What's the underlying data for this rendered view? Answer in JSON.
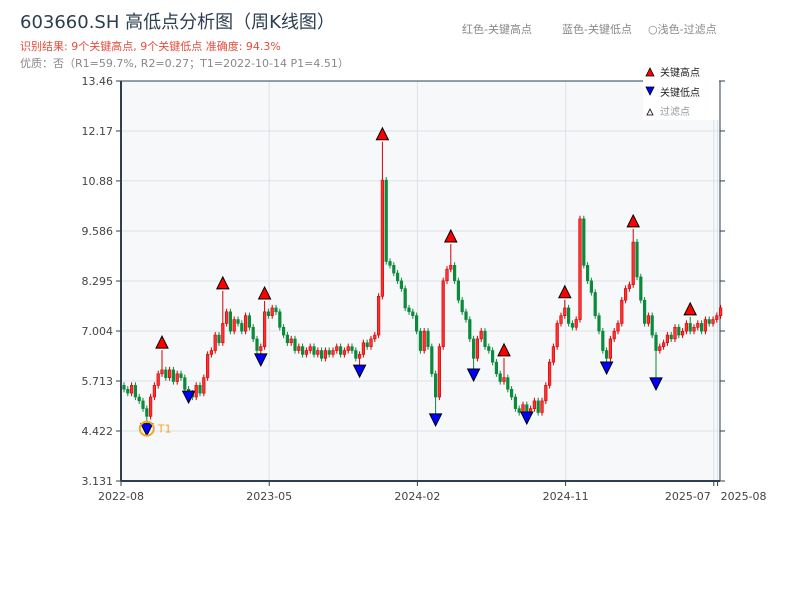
{
  "header": {
    "title": "603660.SH 高低点分析图（周K线图）",
    "result": "识别结果: 9个关键高点, 9个关键低点  准确度: 94.3%",
    "quality": "优质：否（R1=59.7%, R2=0.27；T1=2022-10-14 P1=4.51）",
    "color_legend": [
      "红色-关键高点",
      "蓝色-关键低点",
      "○浅色-过滤点"
    ]
  },
  "chart_data": {
    "type": "candlestick",
    "title": "603660.SH 高低点分析图（周K线图）",
    "up_color": "#d40000",
    "down_color": "#0a8a3a",
    "high_marker_color": "#ff0000",
    "low_marker_color": "#0000ff",
    "t1_color": "#f5a623",
    "ylim": [
      3.131,
      13.46
    ],
    "yticks": [
      "3.131",
      "4.422",
      "5.713",
      "7.004",
      "8.295",
      "9.586",
      "10.88",
      "12.17",
      "13.46"
    ],
    "xticks": [
      {
        "index": 0,
        "label": "2022-08"
      },
      {
        "index": 39,
        "label": "2023-05"
      },
      {
        "index": 78,
        "label": "2024-02"
      },
      {
        "index": 117,
        "label": "2024-11"
      },
      {
        "index": 156,
        "label": "2025-07"
      },
      {
        "index": 157,
        "label": "2025-08"
      }
    ],
    "grid": true,
    "legend": {
      "position": "top-right",
      "items": [
        "关键高点",
        "关键低点",
        "过滤点"
      ]
    },
    "start_price": 5.6,
    "close": [
      5.5,
      5.4,
      5.6,
      5.3,
      5.2,
      5.0,
      4.8,
      5.3,
      5.6,
      5.9,
      6.0,
      5.8,
      6.0,
      5.7,
      5.9,
      5.8,
      5.5,
      5.4,
      5.3,
      5.6,
      5.4,
      5.8,
      6.4,
      6.5,
      6.9,
      6.7,
      7.2,
      7.5,
      7.0,
      7.3,
      7.2,
      7.0,
      7.4,
      7.1,
      6.8,
      6.5,
      6.6,
      7.5,
      7.4,
      7.6,
      7.5,
      7.1,
      6.9,
      6.7,
      6.8,
      6.5,
      6.6,
      6.4,
      6.5,
      6.6,
      6.4,
      6.5,
      6.3,
      6.5,
      6.4,
      6.5,
      6.6,
      6.4,
      6.5,
      6.6,
      6.5,
      6.3,
      6.4,
      6.7,
      6.6,
      6.8,
      6.9,
      7.9,
      10.9,
      8.8,
      8.7,
      8.5,
      8.3,
      8.1,
      7.6,
      7.5,
      7.4,
      7.0,
      6.5,
      7.0,
      6.6,
      5.9,
      5.3,
      6.6,
      8.3,
      8.6,
      8.7,
      8.3,
      7.8,
      7.5,
      7.3,
      6.8,
      6.3,
      6.8,
      7.0,
      6.6,
      6.5,
      6.2,
      5.9,
      5.7,
      5.8,
      5.5,
      5.3,
      5.0,
      4.9,
      5.1,
      4.9,
      5.0,
      5.2,
      4.9,
      5.2,
      5.6,
      6.2,
      6.6,
      7.2,
      7.4,
      7.6,
      7.2,
      7.1,
      7.3,
      9.9,
      8.7,
      8.3,
      8.0,
      7.4,
      7.0,
      6.5,
      6.3,
      6.8,
      7.0,
      7.2,
      7.8,
      8.1,
      8.2,
      9.3,
      8.4,
      7.8,
      7.2,
      7.4,
      6.9,
      6.5,
      6.6,
      6.7,
      6.9,
      6.8,
      7.1,
      6.9,
      7.0,
      7.2,
      7.0,
      7.1,
      7.2,
      7.0,
      7.3,
      7.2,
      7.3,
      7.4,
      7.6
    ],
    "key_highs": [
      {
        "index": 10,
        "price": 6.51
      },
      {
        "index": 26,
        "price": 8.04
      },
      {
        "index": 37,
        "price": 7.78
      },
      {
        "index": 68,
        "price": 11.89
      },
      {
        "index": 86,
        "price": 9.25
      },
      {
        "index": 100,
        "price": 6.31
      },
      {
        "index": 116,
        "price": 7.81
      },
      {
        "index": 134,
        "price": 9.64
      },
      {
        "index": 149,
        "price": 7.37
      }
    ],
    "key_lows": [
      {
        "index": 6,
        "price": 4.51
      },
      {
        "index": 17,
        "price": 5.35
      },
      {
        "index": 36,
        "price": 6.31
      },
      {
        "index": 62,
        "price": 6.02
      },
      {
        "index": 82,
        "price": 4.76
      },
      {
        "index": 92,
        "price": 5.92
      },
      {
        "index": 106,
        "price": 4.81
      },
      {
        "index": 127,
        "price": 6.1
      },
      {
        "index": 140,
        "price": 5.69
      }
    ],
    "t1": {
      "index": 6,
      "label": "T1",
      "date": "2022-10-14",
      "price": 4.51
    }
  }
}
